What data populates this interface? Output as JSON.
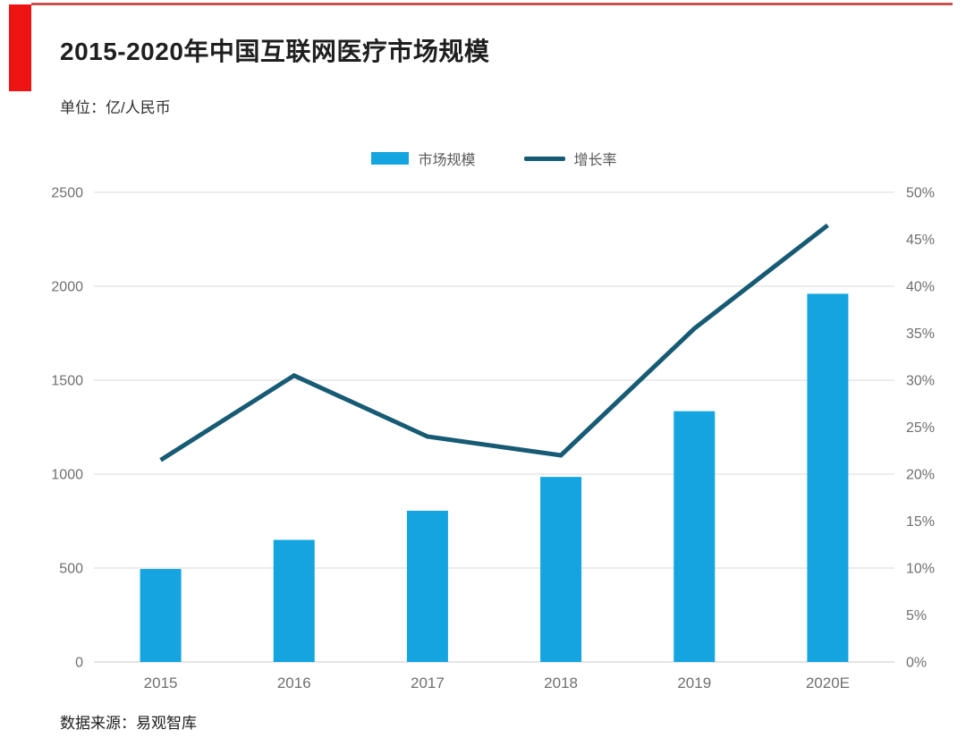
{
  "header": {
    "title": "2015-2020年中国互联网医疗市场规模",
    "subtitle": "单位：亿/人民币"
  },
  "legend": {
    "items": [
      {
        "label": "市场规模",
        "swatch": "bar-swatch-icon",
        "color": "#14a5e0"
      },
      {
        "label": "增长率",
        "swatch": "line-swatch-icon",
        "color": "#175a73"
      }
    ]
  },
  "chart_data": {
    "type": "combo-bar-line",
    "title": "2015-2020年中国互联网医疗市场规模",
    "unit_note": "单位：亿/人民币",
    "categories": [
      "2015",
      "2016",
      "2017",
      "2018",
      "2019",
      "2020E"
    ],
    "series": [
      {
        "name": "市场规模",
        "type": "bar",
        "axis": "left",
        "unit": "亿元人民币",
        "color": "#14a5e0",
        "values": [
          495,
          650,
          805,
          985,
          1335,
          1960
        ]
      },
      {
        "name": "增长率",
        "type": "line",
        "axis": "right",
        "unit": "%",
        "color": "#175a73",
        "values": [
          21.5,
          30.5,
          24.0,
          22.0,
          35.5,
          46.5
        ]
      }
    ],
    "left_axis": {
      "min": 0,
      "max": 2500,
      "step": 500,
      "tick_labels": [
        "0",
        "500",
        "1000",
        "1500",
        "2000",
        "2500"
      ]
    },
    "right_axis": {
      "min": 0,
      "max": 50,
      "step": 5,
      "grid_step": 10,
      "tick_labels": [
        "0%",
        "5%",
        "10%",
        "15%",
        "20%",
        "25%",
        "30%",
        "35%",
        "40%",
        "45%",
        "50%"
      ]
    },
    "grid": true,
    "legend_position": "top-center"
  },
  "footer": {
    "source": "数据来源：易观智库"
  },
  "colors": {
    "bar": "#14a5e0",
    "line": "#175a73",
    "accent_red": "#ee1414",
    "accent_line_red": "#cc5252",
    "grid": "#d9d9d9",
    "axis_text": "#6f6f6f",
    "legend_text": "#595959"
  }
}
